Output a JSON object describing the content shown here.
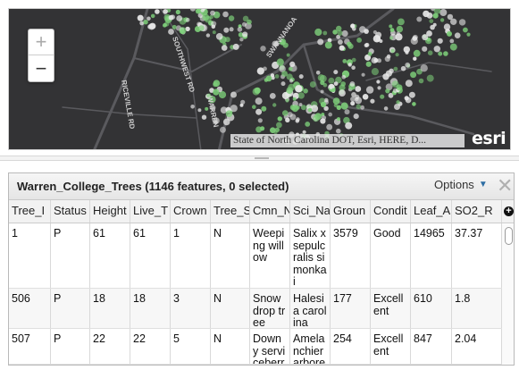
{
  "map": {
    "zoom_in_label": "+",
    "zoom_out_label": "−",
    "attribution": "State of North Carolina DOT, Esri, HERE, D...",
    "logo_text": "esri",
    "road_labels": [
      "RICEVILLE RD",
      "SOUTHWEST RD",
      "SWANNANOA",
      "WARREN"
    ],
    "colors": {
      "background": "#333335",
      "road": "#5a5a5e",
      "tree_light": "#e8e8e8",
      "tree_green": "#7ed07a"
    }
  },
  "table": {
    "title": "Warren_College_Trees (1146 features, 0 selected)",
    "options_label": "Options",
    "close_label": "✕",
    "column_menu_label": "+",
    "columns": [
      "Tree_I",
      "Status",
      "Height",
      "Live_T",
      "Crown",
      "Tree_S",
      "Cmn_N",
      "Sci_Na",
      "Groun",
      "Condit",
      "Leaf_A",
      "SO2_R"
    ],
    "rows": [
      [
        "1",
        "P",
        "61",
        "61",
        "1",
        "N",
        "Weeping willow",
        "Salix x sepulcralis simonkai",
        "3579",
        "Good",
        "14965",
        "37.37"
      ],
      [
        "506",
        "P",
        "18",
        "18",
        "3",
        "N",
        "Snowdrop tree",
        "Halesia carolina",
        "177",
        "Excellent",
        "610",
        "1.8"
      ],
      [
        "507",
        "P",
        "22",
        "22",
        "5",
        "N",
        "Downy serviceberry",
        "Amelanchier arborea",
        "254",
        "Excellent",
        "847",
        "2.04"
      ]
    ]
  }
}
